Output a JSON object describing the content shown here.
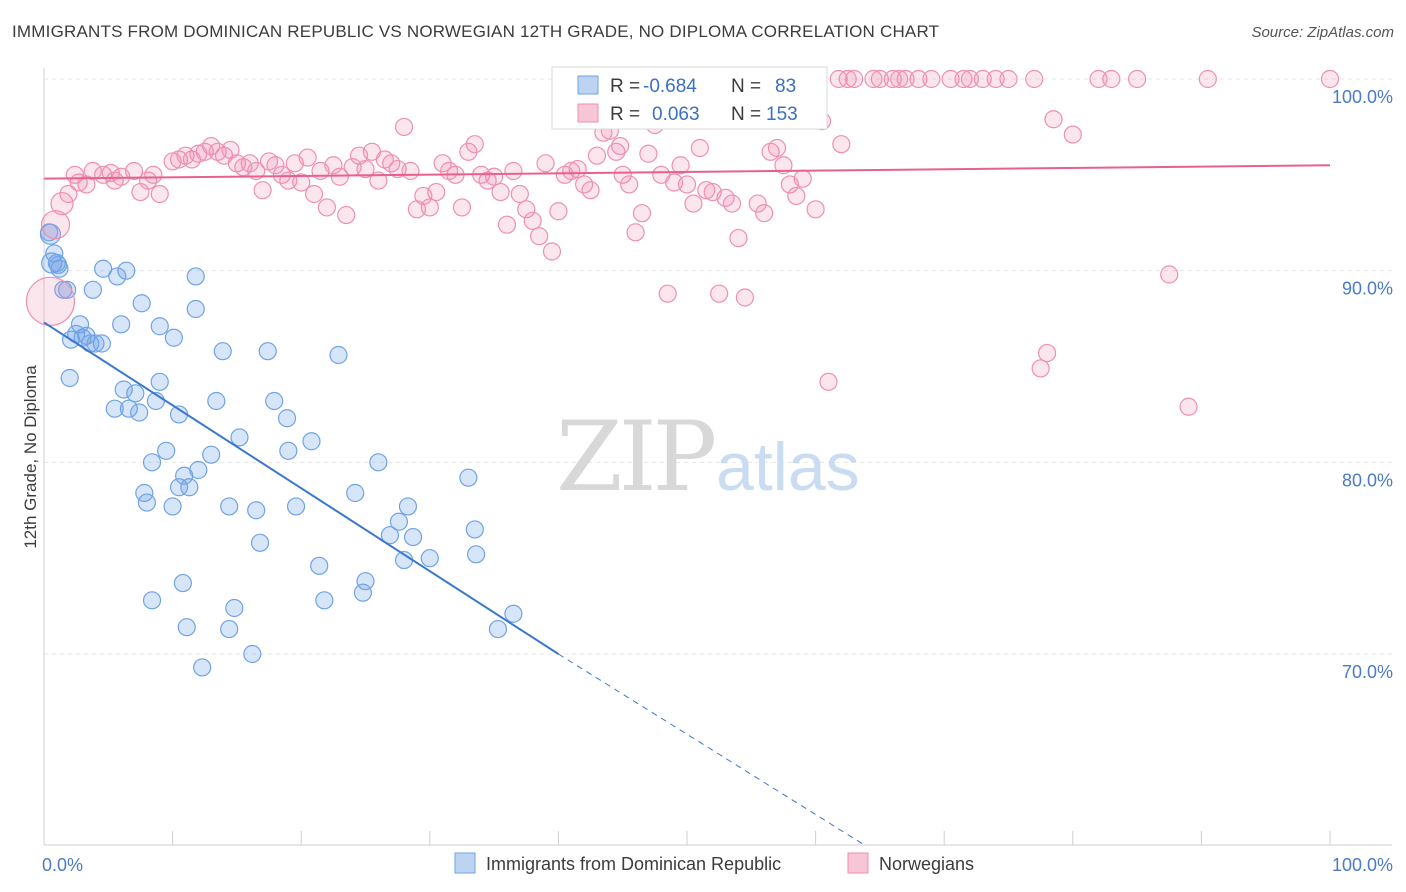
{
  "title": "IMMIGRANTS FROM DOMINICAN REPUBLIC VS NORWEGIAN 12TH GRADE, NO DIPLOMA CORRELATION CHART",
  "source": "Source: ZipAtlas.com",
  "watermark": {
    "zip": "ZIP",
    "atlas": "atlas"
  },
  "colors": {
    "blue": "#6fa3e6",
    "blue_line": "#3a78d0",
    "pink": "#ef8fb0",
    "pink_line": "#e8608e",
    "tick": "#4a7bc8"
  },
  "legend": {
    "rows": [
      {
        "r_label": "R =",
        "r_value": "-0.684",
        "n_label": "N =",
        "n_value": "83"
      },
      {
        "r_label": "R =",
        "r_value": "0.063",
        "n_label": "N =",
        "n_value": "153"
      }
    ]
  },
  "chart_data": {
    "type": "scatter",
    "title": "IMMIGRANTS FROM DOMINICAN REPUBLIC VS NORWEGIAN 12TH GRADE, NO DIPLOMA CORRELATION CHART",
    "xlabel": "",
    "ylabel": "12th Grade, No Diploma",
    "x_tick_labels": [
      "0.0%",
      "100.0%"
    ],
    "y_tick_labels": [
      "70.0%",
      "80.0%",
      "90.0%",
      "100.0%"
    ],
    "y_ticks": [
      70,
      80,
      90,
      100
    ],
    "xlim": [
      0,
      100
    ],
    "ylim": [
      60,
      101
    ],
    "grid": true,
    "legend_position": "bottom",
    "series": [
      {
        "name": "Immigrants from Dominican Republic",
        "r": -0.684,
        "n": 83,
        "trend": {
          "x0": 0,
          "y0": 87.3,
          "x1": 40,
          "y1": 70.0,
          "dash_to_x": 63.8
        },
        "points": [
          [
            0.5,
            91.9
          ],
          [
            0.6,
            90.4
          ],
          [
            0.8,
            90.9
          ],
          [
            1.0,
            90.4
          ],
          [
            1.2,
            90.1
          ],
          [
            1.5,
            89.0
          ],
          [
            1.8,
            89.0
          ],
          [
            2.5,
            86.7
          ],
          [
            2.8,
            87.2
          ],
          [
            3.0,
            86.5
          ],
          [
            3.3,
            86.6
          ],
          [
            3.6,
            86.2
          ],
          [
            4.0,
            86.2
          ],
          [
            4.5,
            86.2
          ],
          [
            2.0,
            84.4
          ],
          [
            3.8,
            89.0
          ],
          [
            4.6,
            90.1
          ],
          [
            5.7,
            89.7
          ],
          [
            6.4,
            90.0
          ],
          [
            7.6,
            88.3
          ],
          [
            6.0,
            87.2
          ],
          [
            9.0,
            87.1
          ],
          [
            10.1,
            86.5
          ],
          [
            11.8,
            89.7
          ],
          [
            11.8,
            88.0
          ],
          [
            13.9,
            85.8
          ],
          [
            17.4,
            85.8
          ],
          [
            22.9,
            85.6
          ],
          [
            6.2,
            83.8
          ],
          [
            7.1,
            83.6
          ],
          [
            5.5,
            82.8
          ],
          [
            6.6,
            82.8
          ],
          [
            7.4,
            82.6
          ],
          [
            8.7,
            83.2
          ],
          [
            9.0,
            84.2
          ],
          [
            10.5,
            82.5
          ],
          [
            13.4,
            83.2
          ],
          [
            15.2,
            81.3
          ],
          [
            17.9,
            83.2
          ],
          [
            18.9,
            82.3
          ],
          [
            19.0,
            80.6
          ],
          [
            20.8,
            81.1
          ],
          [
            9.5,
            80.6
          ],
          [
            8.4,
            80.0
          ],
          [
            10.9,
            79.3
          ],
          [
            12.0,
            79.6
          ],
          [
            13.0,
            80.4
          ],
          [
            26.0,
            80.0
          ],
          [
            33.0,
            79.2
          ],
          [
            7.8,
            78.4
          ],
          [
            8.0,
            77.9
          ],
          [
            10.0,
            77.7
          ],
          [
            10.5,
            78.7
          ],
          [
            11.3,
            78.7
          ],
          [
            14.4,
            77.7
          ],
          [
            16.5,
            77.5
          ],
          [
            19.6,
            77.7
          ],
          [
            24.2,
            78.4
          ],
          [
            28.3,
            77.7
          ],
          [
            27.6,
            76.9
          ],
          [
            26.9,
            76.2
          ],
          [
            28.7,
            76.1
          ],
          [
            33.5,
            76.5
          ],
          [
            16.8,
            75.8
          ],
          [
            21.4,
            74.6
          ],
          [
            28.0,
            74.9
          ],
          [
            30.0,
            75.0
          ],
          [
            33.6,
            75.2
          ],
          [
            10.8,
            73.7
          ],
          [
            21.8,
            72.8
          ],
          [
            25.0,
            73.8
          ],
          [
            24.8,
            73.2
          ],
          [
            8.4,
            72.8
          ],
          [
            14.8,
            72.4
          ],
          [
            36.5,
            72.1
          ],
          [
            11.1,
            71.4
          ],
          [
            14.4,
            71.3
          ],
          [
            35.3,
            71.3
          ],
          [
            12.3,
            69.3
          ],
          [
            16.2,
            70.0
          ],
          [
            0.4,
            92.0
          ],
          [
            1.1,
            90.3
          ],
          [
            2.1,
            86.4
          ]
        ]
      },
      {
        "name": "Norwegians",
        "r": 0.063,
        "n": 153,
        "trend": {
          "x0": 0,
          "y0": 94.8,
          "x1": 100,
          "y1": 95.5
        },
        "points": [
          [
            0.5,
            88.4
          ],
          [
            0.9,
            92.4
          ],
          [
            1.4,
            93.5
          ],
          [
            1.9,
            94.0
          ],
          [
            2.4,
            95.0
          ],
          [
            2.7,
            94.6
          ],
          [
            3.3,
            94.5
          ],
          [
            3.8,
            95.2
          ],
          [
            4.6,
            95.0
          ],
          [
            5.2,
            95.1
          ],
          [
            5.5,
            94.7
          ],
          [
            6.0,
            94.9
          ],
          [
            7.0,
            95.2
          ],
          [
            7.5,
            94.1
          ],
          [
            8.1,
            94.7
          ],
          [
            8.5,
            95.0
          ],
          [
            9.0,
            94.0
          ],
          [
            10.0,
            95.7
          ],
          [
            10.5,
            95.8
          ],
          [
            11.0,
            96.0
          ],
          [
            11.5,
            95.8
          ],
          [
            12.0,
            96.1
          ],
          [
            12.5,
            96.2
          ],
          [
            13.0,
            96.5
          ],
          [
            13.5,
            96.2
          ],
          [
            14.0,
            96.0
          ],
          [
            14.5,
            96.3
          ],
          [
            15.0,
            95.6
          ],
          [
            15.5,
            95.4
          ],
          [
            16.0,
            95.6
          ],
          [
            16.5,
            95.2
          ],
          [
            17.0,
            94.2
          ],
          [
            17.5,
            95.7
          ],
          [
            18.0,
            95.5
          ],
          [
            18.5,
            95.0
          ],
          [
            19.0,
            94.7
          ],
          [
            19.5,
            95.6
          ],
          [
            20.0,
            94.6
          ],
          [
            20.5,
            95.9
          ],
          [
            21.0,
            94.0
          ],
          [
            21.5,
            95.2
          ],
          [
            22.0,
            93.3
          ],
          [
            22.5,
            95.5
          ],
          [
            23.0,
            94.9
          ],
          [
            23.5,
            92.9
          ],
          [
            24.0,
            95.4
          ],
          [
            24.5,
            96.0
          ],
          [
            25.0,
            95.3
          ],
          [
            25.5,
            96.2
          ],
          [
            26.0,
            94.7
          ],
          [
            26.5,
            95.8
          ],
          [
            27.0,
            95.6
          ],
          [
            27.5,
            95.3
          ],
          [
            28.0,
            97.5
          ],
          [
            28.5,
            95.2
          ],
          [
            29.0,
            93.2
          ],
          [
            29.5,
            93.9
          ],
          [
            30.0,
            93.3
          ],
          [
            30.5,
            94.1
          ],
          [
            31.0,
            95.6
          ],
          [
            31.5,
            95.2
          ],
          [
            32.0,
            95.0
          ],
          [
            32.5,
            93.3
          ],
          [
            33.0,
            96.2
          ],
          [
            33.5,
            96.6
          ],
          [
            34.0,
            95.0
          ],
          [
            34.5,
            94.7
          ],
          [
            35.0,
            94.9
          ],
          [
            35.5,
            94.1
          ],
          [
            36.0,
            92.4
          ],
          [
            36.5,
            95.2
          ],
          [
            37.0,
            94.0
          ],
          [
            37.5,
            93.2
          ],
          [
            38.0,
            92.6
          ],
          [
            38.5,
            91.8
          ],
          [
            39.0,
            95.6
          ],
          [
            39.5,
            91.0
          ],
          [
            40.0,
            93.1
          ],
          [
            40.5,
            95.0
          ],
          [
            41.0,
            95.2
          ],
          [
            41.5,
            95.3
          ],
          [
            42.0,
            94.5
          ],
          [
            42.5,
            94.2
          ],
          [
            43.0,
            96.0
          ],
          [
            43.5,
            97.2
          ],
          [
            44.0,
            97.3
          ],
          [
            44.5,
            96.2
          ],
          [
            45.0,
            95.0
          ],
          [
            45.5,
            94.5
          ],
          [
            46.0,
            92.0
          ],
          [
            46.5,
            93.0
          ],
          [
            47.0,
            96.1
          ],
          [
            47.5,
            97.6
          ],
          [
            48.0,
            95.0
          ],
          [
            48.5,
            88.8
          ],
          [
            49.0,
            94.6
          ],
          [
            49.5,
            95.5
          ],
          [
            50.0,
            94.5
          ],
          [
            50.5,
            93.5
          ],
          [
            51.0,
            96.4
          ],
          [
            52.0,
            94.1
          ],
          [
            52.5,
            88.8
          ],
          [
            53.0,
            93.8
          ],
          [
            53.5,
            93.5
          ],
          [
            54.0,
            91.7
          ],
          [
            54.5,
            88.6
          ],
          [
            56.0,
            93.0
          ],
          [
            56.5,
            96.2
          ],
          [
            57.0,
            96.4
          ],
          [
            58.0,
            94.5
          ],
          [
            58.5,
            93.9
          ],
          [
            59.0,
            94.8
          ],
          [
            60.0,
            93.2
          ],
          [
            60.5,
            97.8
          ],
          [
            61.0,
            84.2
          ],
          [
            62.0,
            96.6
          ],
          [
            63.0,
            100.0
          ],
          [
            64.5,
            100.0
          ],
          [
            65.0,
            100.0
          ],
          [
            66.0,
            100.0
          ],
          [
            67.0,
            100.0
          ],
          [
            68.0,
            100.0
          ],
          [
            69.0,
            100.0
          ],
          [
            70.5,
            100.0
          ],
          [
            71.5,
            100.0
          ],
          [
            72.0,
            100.0
          ],
          [
            73.0,
            100.0
          ],
          [
            74.0,
            100.0
          ],
          [
            75.0,
            100.0
          ],
          [
            77.0,
            100.0
          ],
          [
            77.5,
            84.9
          ],
          [
            78.0,
            85.7
          ],
          [
            78.5,
            97.9
          ],
          [
            80.0,
            97.1
          ],
          [
            82.0,
            100.0
          ],
          [
            83.0,
            100.0
          ],
          [
            85.0,
            100.0
          ],
          [
            87.5,
            89.8
          ],
          [
            89.0,
            82.9
          ],
          [
            90.5,
            100.0
          ],
          [
            100.0,
            100.0
          ],
          [
            61.8,
            100.0
          ],
          [
            62.5,
            100.0
          ],
          [
            66.5,
            100.0
          ],
          [
            57.5,
            95.5
          ],
          [
            55.5,
            93.5
          ],
          [
            51.5,
            94.2
          ],
          [
            44.8,
            96.5
          ]
        ]
      }
    ]
  },
  "bottom_legend": {
    "items": [
      {
        "label": "Immigrants from Dominican Republic"
      },
      {
        "label": "Norwegians"
      }
    ]
  }
}
